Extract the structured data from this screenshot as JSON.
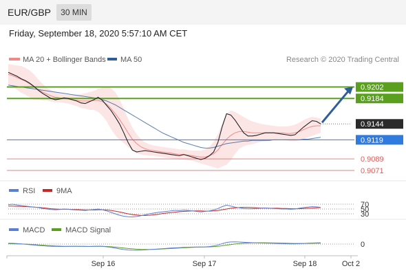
{
  "header": {
    "pair": "EUR/GBP",
    "timeframe": "30 MIN",
    "datetime": "Friday, September 18, 2020 5:57:10 AM CET"
  },
  "credit": "Research © 2020 Trading Central",
  "colors": {
    "bollinger": "#f08a8a",
    "ma50": "#2f5d9c",
    "resistance": "#5aa01e",
    "pivot": "#2f7be0",
    "support": "#e05a5a",
    "current": "#2b2b2b",
    "rsi": "#5b7fd6",
    "rsi_ma": "#c62828",
    "macd": "#5b7fd6",
    "macd_signal": "#5aa01e",
    "price": "#222222"
  },
  "chart_data": [
    {
      "type": "line",
      "panel": "price",
      "legend": [
        {
          "name": "MA 20 + Bollinger Bands",
          "color": "#f08a8a"
        },
        {
          "name": "MA 50",
          "color": "#2f5d9c"
        }
      ],
      "x_ticks": [
        "Sep 16",
        "Sep 17",
        "Sep 18",
        "Oct 2"
      ],
      "ylim": [
        0.906,
        0.9235
      ],
      "levels": [
        {
          "value": 0.9202,
          "label": "0.9202",
          "kind": "resistance"
        },
        {
          "value": 0.9184,
          "label": "0.9184",
          "kind": "resistance"
        },
        {
          "value": 0.9144,
          "label": "0.9144",
          "kind": "current"
        },
        {
          "value": 0.9119,
          "label": "0.9119",
          "kind": "pivot"
        },
        {
          "value": 0.9089,
          "label": "0.9089",
          "kind": "support"
        },
        {
          "value": 0.9071,
          "label": "0.9071",
          "kind": "support"
        }
      ],
      "price_series": [
        0.9225,
        0.9222,
        0.9219,
        0.9215,
        0.9212,
        0.9208,
        0.9203,
        0.9197,
        0.9192,
        0.9188,
        0.9184,
        0.9182,
        0.9183,
        0.9185,
        0.9184,
        0.9182,
        0.918,
        0.9177,
        0.9176,
        0.9179,
        0.9182,
        0.9186,
        0.9181,
        0.9173,
        0.9165,
        0.9155,
        0.9144,
        0.913,
        0.9115,
        0.9103,
        0.91,
        0.9101,
        0.9102,
        0.9101,
        0.91,
        0.9099,
        0.9098,
        0.9097,
        0.9096,
        0.9095,
        0.9094,
        0.9096,
        0.9094,
        0.9092,
        0.909,
        0.9088,
        0.909,
        0.9094,
        0.91,
        0.9115,
        0.914,
        0.916,
        0.9158,
        0.915,
        0.914,
        0.913,
        0.9125,
        0.9125,
        0.9126,
        0.9128,
        0.913,
        0.913,
        0.913,
        0.9129,
        0.9128,
        0.9127,
        0.9126,
        0.9127,
        0.9133,
        0.9139,
        0.9144,
        0.9149,
        0.9148,
        0.9144
      ],
      "ma20_series": [
        0.9222,
        0.922,
        0.9217,
        0.9214,
        0.9211,
        0.9207,
        0.9202,
        0.9198,
        0.9194,
        0.9191,
        0.9188,
        0.9186,
        0.9185,
        0.9184,
        0.9183,
        0.9182,
        0.9181,
        0.918,
        0.918,
        0.918,
        0.9181,
        0.9181,
        0.9179,
        0.9175,
        0.9168,
        0.916,
        0.9151,
        0.9141,
        0.913,
        0.912,
        0.9113,
        0.9108,
        0.9105,
        0.9103,
        0.9102,
        0.9101,
        0.91,
        0.9099,
        0.9098,
        0.9097,
        0.9096,
        0.9096,
        0.9095,
        0.9094,
        0.9093,
        0.9092,
        0.9092,
        0.9094,
        0.9097,
        0.9103,
        0.9112,
        0.912,
        0.9126,
        0.913,
        0.9132,
        0.9132,
        0.9131,
        0.913,
        0.913,
        0.913,
        0.913,
        0.913,
        0.913,
        0.913,
        0.913,
        0.9129,
        0.9129,
        0.913,
        0.9132,
        0.9135,
        0.9138,
        0.914,
        0.9141,
        0.9141
      ],
      "bb_upper": [
        0.9238,
        0.9237,
        0.9236,
        0.9235,
        0.9232,
        0.9228,
        0.9222,
        0.9214,
        0.9207,
        0.9201,
        0.9197,
        0.9194,
        0.9192,
        0.9191,
        0.919,
        0.919,
        0.919,
        0.9191,
        0.9192,
        0.9194,
        0.9196,
        0.9199,
        0.9201,
        0.9202,
        0.92,
        0.9194,
        0.9183,
        0.9168,
        0.9152,
        0.9138,
        0.9128,
        0.912,
        0.9115,
        0.9112,
        0.911,
        0.9109,
        0.9108,
        0.9107,
        0.9106,
        0.9105,
        0.9104,
        0.9104,
        0.9103,
        0.9102,
        0.9102,
        0.9102,
        0.9104,
        0.9108,
        0.9116,
        0.9128,
        0.9145,
        0.916,
        0.9165,
        0.9163,
        0.9159,
        0.9155,
        0.9151,
        0.9148,
        0.9146,
        0.9144,
        0.9143,
        0.9142,
        0.9141,
        0.914,
        0.914,
        0.914,
        0.9141,
        0.9143,
        0.9146,
        0.915,
        0.9153,
        0.9155,
        0.9154,
        0.9152
      ],
      "bb_lower": [
        0.9206,
        0.9203,
        0.9198,
        0.9193,
        0.919,
        0.9186,
        0.9182,
        0.9182,
        0.9181,
        0.9181,
        0.9179,
        0.9178,
        0.9178,
        0.9177,
        0.9176,
        0.9174,
        0.9172,
        0.9169,
        0.9168,
        0.9166,
        0.9166,
        0.9163,
        0.9157,
        0.9148,
        0.9136,
        0.9126,
        0.9119,
        0.9114,
        0.9108,
        0.9102,
        0.9098,
        0.9096,
        0.9095,
        0.9094,
        0.9094,
        0.9093,
        0.9092,
        0.9091,
        0.909,
        0.9089,
        0.9088,
        0.9088,
        0.9087,
        0.9086,
        0.9084,
        0.9082,
        0.908,
        0.9078,
        0.9076,
        0.9074,
        0.9077,
        0.908,
        0.9087,
        0.9097,
        0.9105,
        0.9109,
        0.9111,
        0.9112,
        0.9114,
        0.9116,
        0.9117,
        0.9118,
        0.9119,
        0.912,
        0.912,
        0.9118,
        0.9117,
        0.9117,
        0.9118,
        0.912,
        0.9123,
        0.9125,
        0.9128,
        0.913
      ],
      "ma50_series": [
        0.9205,
        0.9204,
        0.9203,
        0.9202,
        0.9201,
        0.92,
        0.9199,
        0.9198,
        0.9197,
        0.9196,
        0.9195,
        0.9194,
        0.9193,
        0.9192,
        0.9191,
        0.919,
        0.9189,
        0.9188,
        0.9187,
        0.9186,
        0.9185,
        0.9184,
        0.9182,
        0.918,
        0.9177,
        0.9174,
        0.917,
        0.9166,
        0.9162,
        0.9158,
        0.9154,
        0.915,
        0.9146,
        0.9142,
        0.9138,
        0.9134,
        0.913,
        0.9127,
        0.9124,
        0.9121,
        0.9118,
        0.9115,
        0.9113,
        0.9111,
        0.9109,
        0.9107,
        0.9106,
        0.9106,
        0.9107,
        0.9109,
        0.9111,
        0.9113,
        0.9114,
        0.9115,
        0.9116,
        0.9117,
        0.9117,
        0.9118,
        0.9118,
        0.9118,
        0.9118,
        0.9118,
        0.9119,
        0.9119,
        0.9119,
        0.9119,
        0.9119,
        0.9119,
        0.9119,
        0.912,
        0.912,
        0.9121,
        0.9122,
        0.9123
      ],
      "forecast_target": 0.9202
    },
    {
      "type": "line",
      "panel": "rsi",
      "legend": [
        {
          "name": "RSI",
          "color": "#5b7fd6"
        },
        {
          "name": "9MA",
          "color": "#c62828"
        }
      ],
      "y_ticks": [
        "70",
        "50",
        "30"
      ],
      "ylim": [
        10,
        90
      ],
      "rsi": [
        68,
        70,
        67,
        64,
        62,
        60,
        58,
        56,
        52,
        50,
        48,
        47,
        48,
        50,
        49,
        47,
        46,
        45,
        44,
        46,
        48,
        50,
        47,
        42,
        36,
        30,
        24,
        20,
        18,
        17,
        19,
        22,
        26,
        30,
        33,
        36,
        38,
        40,
        42,
        44,
        43,
        45,
        44,
        42,
        40,
        38,
        40,
        42,
        46,
        52,
        60,
        66,
        62,
        58,
        55,
        52,
        51,
        51,
        52,
        53,
        54,
        53,
        52,
        51,
        50,
        50,
        49,
        50,
        53,
        56,
        58,
        60,
        59,
        57
      ],
      "rsi_ma": [
        62,
        62,
        61,
        61,
        60,
        59,
        58,
        57,
        55,
        53,
        51,
        50,
        49,
        49,
        49,
        48,
        48,
        47,
        46,
        46,
        46,
        47,
        47,
        46,
        44,
        41,
        38,
        34,
        30,
        27,
        25,
        23,
        23,
        24,
        26,
        28,
        31,
        33,
        35,
        37,
        39,
        40,
        41,
        42,
        42,
        42,
        41,
        41,
        42,
        44,
        47,
        50,
        53,
        55,
        56,
        57,
        57,
        56,
        55,
        54,
        54,
        53,
        53,
        53,
        52,
        52,
        51,
        51,
        51,
        52,
        53,
        54,
        55,
        56
      ]
    },
    {
      "type": "line",
      "panel": "macd",
      "legend": [
        {
          "name": "MACD",
          "color": "#5b7fd6"
        },
        {
          "name": "MACD Signal",
          "color": "#5aa01e"
        }
      ],
      "y_ticks": [
        "0"
      ],
      "ylim": [
        -10,
        10
      ],
      "macd": [
        1,
        1,
        0.6,
        0.2,
        -0.3,
        -0.8,
        -1.3,
        -1.8,
        -2.2,
        -2.6,
        -2.9,
        -3.1,
        -3.2,
        -3.2,
        -3.1,
        -3.0,
        -3.0,
        -3.1,
        -3.2,
        -3.2,
        -3.0,
        -2.8,
        -3.0,
        -3.6,
        -4.4,
        -5.4,
        -6.4,
        -7.2,
        -7.8,
        -8.1,
        -8.2,
        -8.0,
        -7.7,
        -7.3,
        -6.9,
        -6.5,
        -6.1,
        -5.7,
        -5.3,
        -5.0,
        -4.7,
        -4.4,
        -4.2,
        -4.0,
        -3.9,
        -3.9,
        -3.7,
        -3.3,
        -2.5,
        -1.2,
        0.6,
        2.2,
        2.8,
        2.9,
        2.7,
        2.4,
        2.1,
        1.8,
        1.6,
        1.4,
        1.3,
        1.2,
        1.0,
        0.8,
        0.6,
        0.4,
        0.3,
        0.3,
        0.5,
        0.8,
        1.1,
        1.4,
        1.6,
        1.7
      ],
      "macd_signal": [
        0.5,
        0.4,
        0.3,
        0.1,
        -0.1,
        -0.4,
        -0.7,
        -1.1,
        -1.5,
        -1.9,
        -2.2,
        -2.5,
        -2.7,
        -2.9,
        -3.0,
        -3.0,
        -3.0,
        -3.0,
        -3.0,
        -3.1,
        -3.1,
        -3.0,
        -3.0,
        -3.2,
        -3.5,
        -4.0,
        -4.6,
        -5.2,
        -5.8,
        -6.3,
        -6.8,
        -7.1,
        -7.2,
        -7.2,
        -7.0,
        -6.8,
        -6.5,
        -6.2,
        -5.9,
        -5.5,
        -5.2,
        -4.9,
        -4.6,
        -4.3,
        -4.1,
        -4.0,
        -3.9,
        -3.7,
        -3.4,
        -2.9,
        -2.2,
        -1.4,
        -0.6,
        0.1,
        0.7,
        1.1,
        1.4,
        1.6,
        1.7,
        1.7,
        1.7,
        1.6,
        1.5,
        1.4,
        1.3,
        1.1,
        0.9,
        0.8,
        0.8,
        0.8,
        0.9,
        1.0,
        1.1,
        1.2
      ]
    }
  ]
}
